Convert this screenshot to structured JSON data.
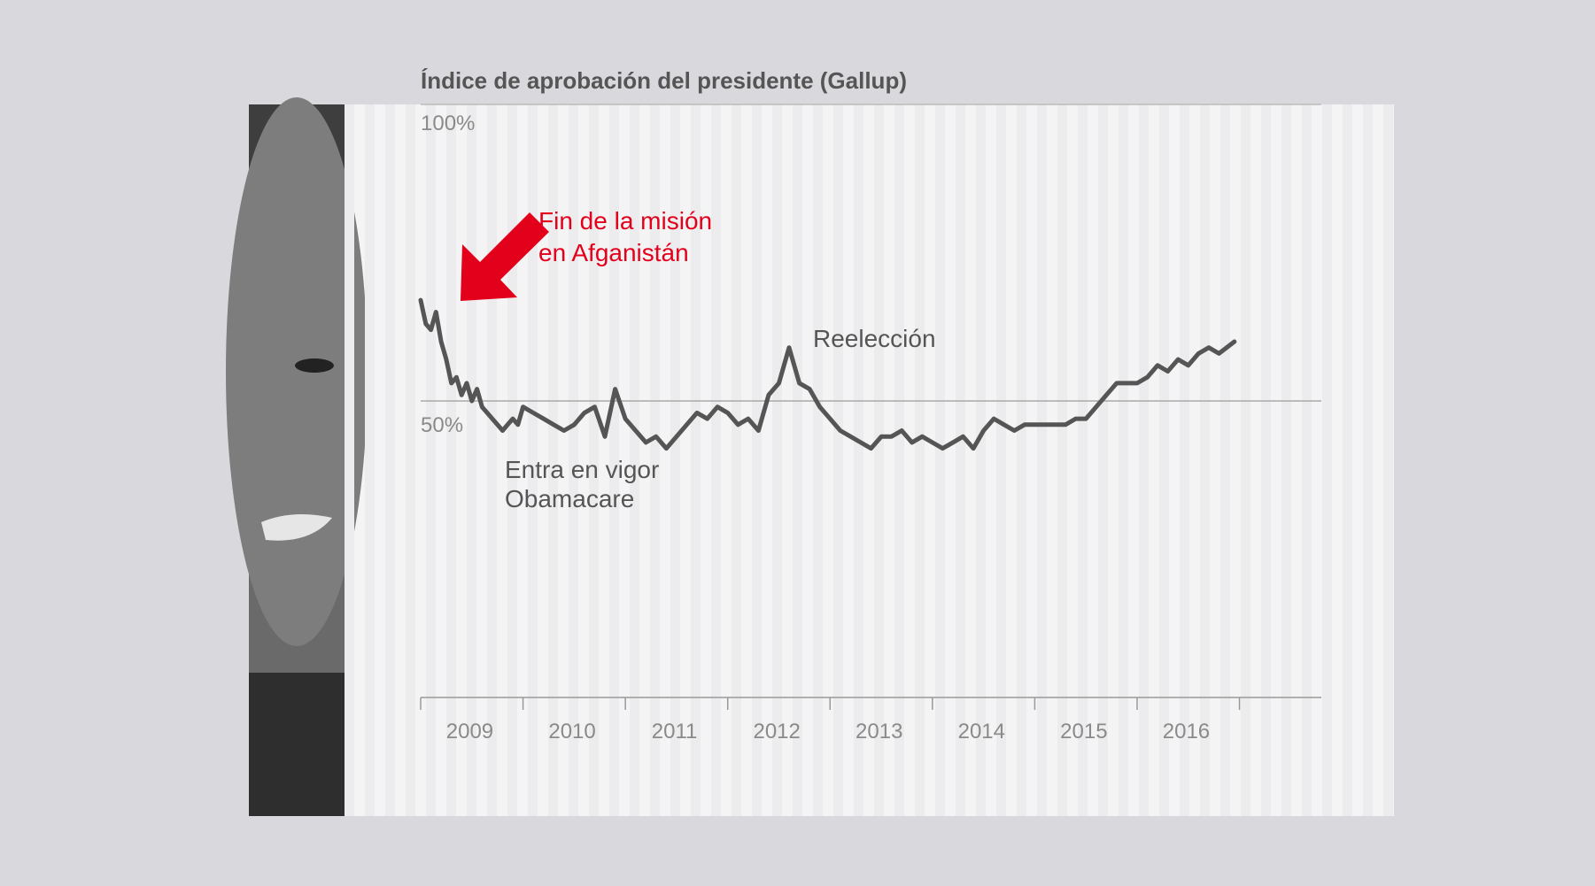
{
  "chart_data": {
    "type": "line",
    "title": "Índice de aprobación del presidente (Gallup)",
    "y_ticks": [
      "100%",
      "50%"
    ],
    "ylim": [
      0,
      100
    ],
    "x_tick_labels": [
      "2009",
      "2010",
      "2011",
      "2012",
      "2013",
      "2014",
      "2015",
      "2016"
    ],
    "x_range": [
      2009.0,
      2017.8
    ],
    "reference_line": 50,
    "series": [
      {
        "x": [
          2009.0,
          2009.05,
          2009.1,
          2009.15,
          2009.2,
          2009.25,
          2009.3,
          2009.35,
          2009.4,
          2009.45,
          2009.5,
          2009.55,
          2009.6,
          2009.65,
          2009.7,
          2009.75,
          2009.8,
          2009.85,
          2009.9,
          2009.95,
          2010.0,
          2010.1,
          2010.2,
          2010.3,
          2010.4,
          2010.5,
          2010.6,
          2010.7,
          2010.8,
          2010.9,
          2011.0,
          2011.1,
          2011.2,
          2011.3,
          2011.4,
          2011.5,
          2011.6,
          2011.7,
          2011.8,
          2011.9,
          2012.0,
          2012.1,
          2012.2,
          2012.3,
          2012.4,
          2012.5,
          2012.6,
          2012.7,
          2012.8,
          2012.9,
          2013.0,
          2013.1,
          2013.2,
          2013.3,
          2013.4,
          2013.5,
          2013.6,
          2013.7,
          2013.8,
          2013.9,
          2014.0,
          2014.1,
          2014.2,
          2014.3,
          2014.4,
          2014.5,
          2014.6,
          2014.7,
          2014.8,
          2014.9,
          2015.0,
          2015.1,
          2015.2,
          2015.3,
          2015.4,
          2015.5,
          2015.6,
          2015.7,
          2015.8,
          2015.9,
          2016.0,
          2016.1,
          2016.2,
          2016.3,
          2016.4,
          2016.5,
          2016.6,
          2016.7,
          2016.8,
          2016.95
        ],
        "values": [
          67,
          63,
          62,
          65,
          60,
          57,
          53,
          54,
          51,
          53,
          50,
          52,
          49,
          48,
          47,
          46,
          45,
          46,
          47,
          46,
          49,
          48,
          47,
          46,
          45,
          46,
          48,
          49,
          44,
          52,
          47,
          45,
          43,
          44,
          42,
          44,
          46,
          48,
          47,
          49,
          48,
          46,
          47,
          45,
          51,
          53,
          59,
          53,
          52,
          49,
          47,
          45,
          44,
          43,
          42,
          44,
          44,
          45,
          43,
          44,
          43,
          42,
          43,
          44,
          42,
          45,
          47,
          46,
          45,
          46,
          46,
          46,
          46,
          46,
          47,
          47,
          49,
          51,
          53,
          53,
          53,
          54,
          56,
          55,
          57,
          56,
          58,
          59,
          58,
          60
        ]
      }
    ],
    "annotations": [
      {
        "text_lines": [
          "Fin de la misión",
          "en Afganistán"
        ],
        "color": "#e3001b"
      },
      {
        "text_lines": [
          "Reelección"
        ],
        "color": "#555555"
      },
      {
        "text_lines": [
          "Entra en vigor",
          "Obamacare"
        ],
        "color": "#555555"
      }
    ],
    "colors": {
      "line": "#555555",
      "highlight": "#e3001b"
    }
  }
}
